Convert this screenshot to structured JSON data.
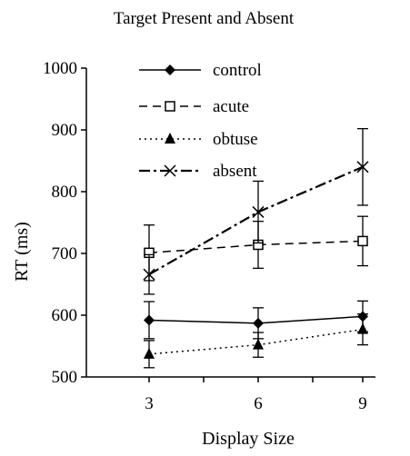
{
  "chart_data": {
    "type": "line",
    "title": "Target Present and Absent",
    "xlabel": "Display Size",
    "ylabel": "RT (ms)",
    "x": [
      3,
      6,
      9
    ],
    "x_tick_labels": [
      "3",
      "6",
      "9"
    ],
    "ylim": [
      500,
      1000
    ],
    "y_ticks": [
      500,
      600,
      700,
      800,
      900,
      1000
    ],
    "y_tick_labels": [
      "500",
      "600",
      "700",
      "800",
      "900",
      "1000"
    ],
    "grid": false,
    "legend_position": "top-right",
    "error_bars": true,
    "series": [
      {
        "name": "control",
        "values": [
          592,
          587,
          598
        ],
        "errors": [
          30,
          25,
          25
        ],
        "marker": "diamond",
        "line_style": "solid"
      },
      {
        "name": "acute",
        "values": [
          701,
          714,
          720
        ],
        "errors": [
          45,
          38,
          40
        ],
        "marker": "square-open",
        "line_style": "dashed"
      },
      {
        "name": "obtuse",
        "values": [
          537,
          552,
          577
        ],
        "errors": [
          22,
          20,
          25
        ],
        "marker": "triangle",
        "line_style": "dotted"
      },
      {
        "name": "absent",
        "values": [
          666,
          767,
          840
        ],
        "errors": [
          32,
          50,
          62
        ],
        "marker": "x",
        "line_style": "dash-dot"
      }
    ]
  }
}
